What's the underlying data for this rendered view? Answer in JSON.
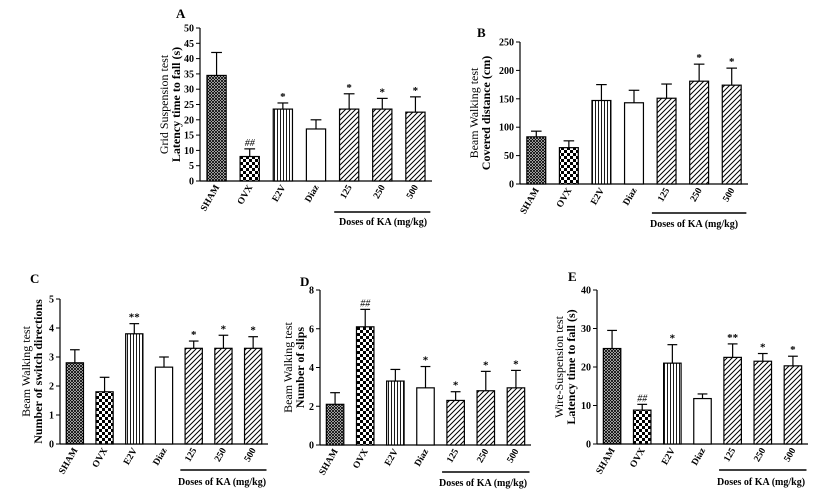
{
  "colors": {
    "axis": "#000000",
    "bar_fill": "#ffffff",
    "pattern_ink": "#000000"
  },
  "chart_data": [
    {
      "panel": "A",
      "type": "bar",
      "ylabel_line1": "Grid Suspension test",
      "ylabel_line2": "Latency time to fall (s)",
      "ylim": [
        0,
        50
      ],
      "yticks": [
        "0",
        "5",
        "10",
        "15",
        "20",
        "25",
        "30",
        "35",
        "40",
        "45",
        "50"
      ],
      "categories": [
        "SHAM",
        "OVX",
        "E2V",
        "Diaz",
        "125",
        "250",
        "500"
      ],
      "values": [
        34.5,
        8.0,
        23.5,
        17.0,
        23.5,
        23.5,
        22.5
      ],
      "errors": [
        7.5,
        2.5,
        2.0,
        3.0,
        5.0,
        3.5,
        5.0
      ],
      "patterns": [
        "cross",
        "check",
        "vline",
        "none",
        "diag",
        "diag",
        "diag"
      ],
      "significance": [
        "",
        "##",
        "*",
        "",
        "*",
        "*",
        "*"
      ],
      "dose_label": "Doses of KA (mg/kg)"
    },
    {
      "panel": "B",
      "type": "bar",
      "ylabel_line1": "Beam Walking test",
      "ylabel_line2": "Covered distance (cm)",
      "ylim": [
        0,
        250
      ],
      "yticks": [
        "0",
        "50",
        "100",
        "150",
        "200",
        "250"
      ],
      "categories": [
        "SHAM",
        "OVX",
        "E2V",
        "Diaz",
        "125",
        "250",
        "500"
      ],
      "values": [
        83,
        64,
        147,
        143,
        151,
        181,
        174
      ],
      "errors": [
        10,
        12,
        28,
        22,
        25,
        30,
        30
      ],
      "patterns": [
        "cross",
        "check",
        "vline",
        "none",
        "diag",
        "diag",
        "diag"
      ],
      "significance": [
        "",
        "",
        "",
        "",
        "",
        "*",
        "*"
      ],
      "dose_label": "Doses of KA (mg/kg)"
    },
    {
      "panel": "C",
      "type": "bar",
      "ylabel_line1": "Beam Walking test",
      "ylabel_line2": "Number of switch directions",
      "ylim": [
        0,
        5
      ],
      "yticks": [
        "0",
        "1",
        "2",
        "3",
        "4",
        "5"
      ],
      "categories": [
        "SHAM",
        "OVX",
        "E2V",
        "Diaz",
        "125",
        "250",
        "500"
      ],
      "values": [
        2.8,
        1.8,
        3.8,
        2.65,
        3.3,
        3.3,
        3.3
      ],
      "errors": [
        0.45,
        0.5,
        0.35,
        0.35,
        0.25,
        0.45,
        0.4
      ],
      "patterns": [
        "cross",
        "check",
        "vline",
        "none",
        "diag",
        "diag",
        "diag"
      ],
      "significance": [
        "",
        "",
        "**",
        "",
        "*",
        "*",
        "*"
      ],
      "dose_label": "Doses of KA (mg/kg)"
    },
    {
      "panel": "D",
      "type": "bar",
      "ylabel_line1": "Beam Walking test",
      "ylabel_line2": "Number of slips",
      "ylim": [
        0,
        8
      ],
      "yticks": [
        "0",
        "2",
        "4",
        "6",
        "8"
      ],
      "categories": [
        "SHAM",
        "OVX",
        "E2V",
        "Diaz",
        "125",
        "250",
        "500"
      ],
      "values": [
        2.1,
        6.1,
        3.3,
        2.95,
        2.3,
        2.8,
        2.95
      ],
      "errors": [
        0.6,
        0.9,
        0.6,
        1.1,
        0.45,
        1.0,
        0.9
      ],
      "patterns": [
        "cross",
        "check",
        "vline",
        "none",
        "diag",
        "diag",
        "diag"
      ],
      "significance": [
        "",
        "##",
        "",
        "*",
        "*",
        "*",
        "*"
      ],
      "dose_label": "Doses of KA (mg/kg)"
    },
    {
      "panel": "E",
      "type": "bar",
      "ylabel_line1": "Wire-Suspension test",
      "ylabel_line2": "Latency time to fall (s)",
      "ylim": [
        0,
        40
      ],
      "yticks": [
        "0",
        "10",
        "20",
        "30",
        "40"
      ],
      "categories": [
        "SHAM",
        "OVX",
        "E2V",
        "Diaz",
        "125",
        "250",
        "500"
      ],
      "values": [
        24.8,
        8.8,
        21.0,
        11.8,
        22.5,
        21.5,
        20.3
      ],
      "errors": [
        4.7,
        1.5,
        4.8,
        1.2,
        3.5,
        2.0,
        2.5
      ],
      "patterns": [
        "cross",
        "check",
        "vline",
        "none",
        "diag",
        "diag",
        "diag"
      ],
      "significance": [
        "",
        "##",
        "*",
        "",
        "**",
        "*",
        "*"
      ],
      "dose_label": "Doses of KA (mg/kg)"
    }
  ]
}
